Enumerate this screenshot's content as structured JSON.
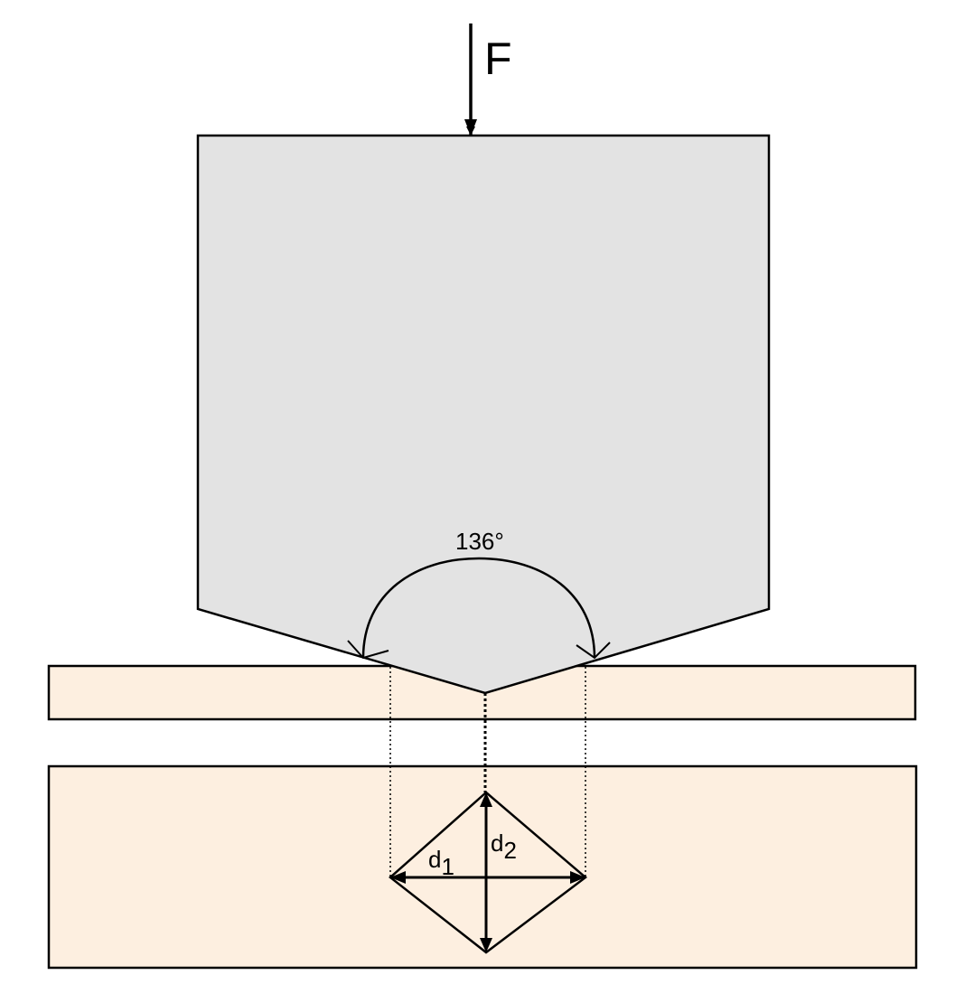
{
  "labels": {
    "force": "F",
    "angle": "136°",
    "diagonal_1": {
      "base": "d",
      "subscript": "1"
    },
    "diagonal_2": {
      "base": "d",
      "subscript": "2"
    }
  },
  "colors": {
    "indenter_fill": "#e3e3e3",
    "specimen_fill": "#fdefe0",
    "stroke": "#000000",
    "background": "#ffffff"
  }
}
